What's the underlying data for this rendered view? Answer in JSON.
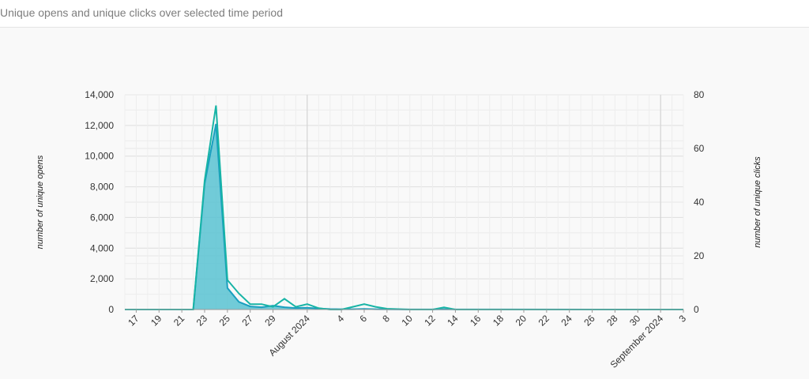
{
  "header": {
    "title": "Unique opens and unique clicks over selected time period"
  },
  "chart_data": {
    "type": "area",
    "title": "Unique opens and unique clicks over selected time period",
    "ylabel": "number of unique opens",
    "y2label": "number of unique clicks",
    "ylim": [
      0,
      14000
    ],
    "y2lim": [
      0,
      80
    ],
    "y_ticks": [
      "0",
      "2,000",
      "4,000",
      "6,000",
      "8,000",
      "10,000",
      "12,000",
      "14,000"
    ],
    "y2_ticks": [
      "0",
      "20",
      "40",
      "60",
      "80"
    ],
    "x_ticks": [
      {
        "label": "17",
        "x": "2024-07-17"
      },
      {
        "label": "19",
        "x": "2024-07-19"
      },
      {
        "label": "21",
        "x": "2024-07-21"
      },
      {
        "label": "23",
        "x": "2024-07-23"
      },
      {
        "label": "25",
        "x": "2024-07-25"
      },
      {
        "label": "27",
        "x": "2024-07-27"
      },
      {
        "label": "29",
        "x": "2024-07-29"
      },
      {
        "label": "August 2024",
        "x": "2024-08-01"
      },
      {
        "label": "4",
        "x": "2024-08-04"
      },
      {
        "label": "6",
        "x": "2024-08-06"
      },
      {
        "label": "8",
        "x": "2024-08-08"
      },
      {
        "label": "10",
        "x": "2024-08-10"
      },
      {
        "label": "12",
        "x": "2024-08-12"
      },
      {
        "label": "14",
        "x": "2024-08-14"
      },
      {
        "label": "16",
        "x": "2024-08-16"
      },
      {
        "label": "18",
        "x": "2024-08-18"
      },
      {
        "label": "20",
        "x": "2024-08-20"
      },
      {
        "label": "22",
        "x": "2024-08-22"
      },
      {
        "label": "24",
        "x": "2024-08-24"
      },
      {
        "label": "26",
        "x": "2024-08-26"
      },
      {
        "label": "28",
        "x": "2024-08-28"
      },
      {
        "label": "30",
        "x": "2024-08-30"
      },
      {
        "label": "September 2024",
        "x": "2024-09-01"
      },
      {
        "label": "3",
        "x": "2024-09-03"
      }
    ],
    "x_range": [
      "2024-07-16",
      "2024-09-03"
    ],
    "series": [
      {
        "axis": "left",
        "style": "area",
        "color": "#1a9fbf",
        "fill": "#4fbfcf",
        "points": [
          [
            "2024-07-16",
            0
          ],
          [
            "2024-07-21",
            0
          ],
          [
            "2024-07-22",
            0
          ],
          [
            "2024-07-23",
            8200
          ],
          [
            "2024-07-24",
            12100
          ],
          [
            "2024-07-25",
            1400
          ],
          [
            "2024-07-26",
            500
          ],
          [
            "2024-07-27",
            200
          ],
          [
            "2024-07-28",
            150
          ],
          [
            "2024-07-29",
            250
          ],
          [
            "2024-07-30",
            150
          ],
          [
            "2024-07-31",
            100
          ],
          [
            "2024-08-01",
            120
          ],
          [
            "2024-08-02",
            60
          ],
          [
            "2024-08-03",
            30
          ],
          [
            "2024-08-04",
            20
          ],
          [
            "2024-08-05",
            20
          ],
          [
            "2024-08-06",
            40
          ],
          [
            "2024-08-07",
            20
          ],
          [
            "2024-08-08",
            10
          ],
          [
            "2024-08-10",
            5
          ],
          [
            "2024-08-12",
            5
          ],
          [
            "2024-08-13",
            20
          ],
          [
            "2024-08-14",
            5
          ],
          [
            "2024-09-03",
            0
          ]
        ]
      },
      {
        "axis": "right",
        "style": "line",
        "color": "#17b4a6",
        "points": [
          [
            "2024-07-16",
            0
          ],
          [
            "2024-07-21",
            0
          ],
          [
            "2024-07-22",
            0
          ],
          [
            "2024-07-23",
            48
          ],
          [
            "2024-07-24",
            76
          ],
          [
            "2024-07-25",
            11
          ],
          [
            "2024-07-26",
            6
          ],
          [
            "2024-07-27",
            2
          ],
          [
            "2024-07-28",
            2
          ],
          [
            "2024-07-29",
            1
          ],
          [
            "2024-07-30",
            4
          ],
          [
            "2024-07-31",
            1
          ],
          [
            "2024-08-01",
            2
          ],
          [
            "2024-08-02",
            0.5
          ],
          [
            "2024-08-03",
            0
          ],
          [
            "2024-08-04",
            0
          ],
          [
            "2024-08-05",
            1
          ],
          [
            "2024-08-06",
            2
          ],
          [
            "2024-08-07",
            1
          ],
          [
            "2024-08-08",
            0.3
          ],
          [
            "2024-08-10",
            0
          ],
          [
            "2024-08-12",
            0
          ],
          [
            "2024-08-13",
            0.8
          ],
          [
            "2024-08-14",
            0
          ],
          [
            "2024-09-03",
            0
          ]
        ]
      }
    ],
    "month_boundaries": [
      "2024-08-01",
      "2024-09-01"
    ],
    "grid": true
  }
}
